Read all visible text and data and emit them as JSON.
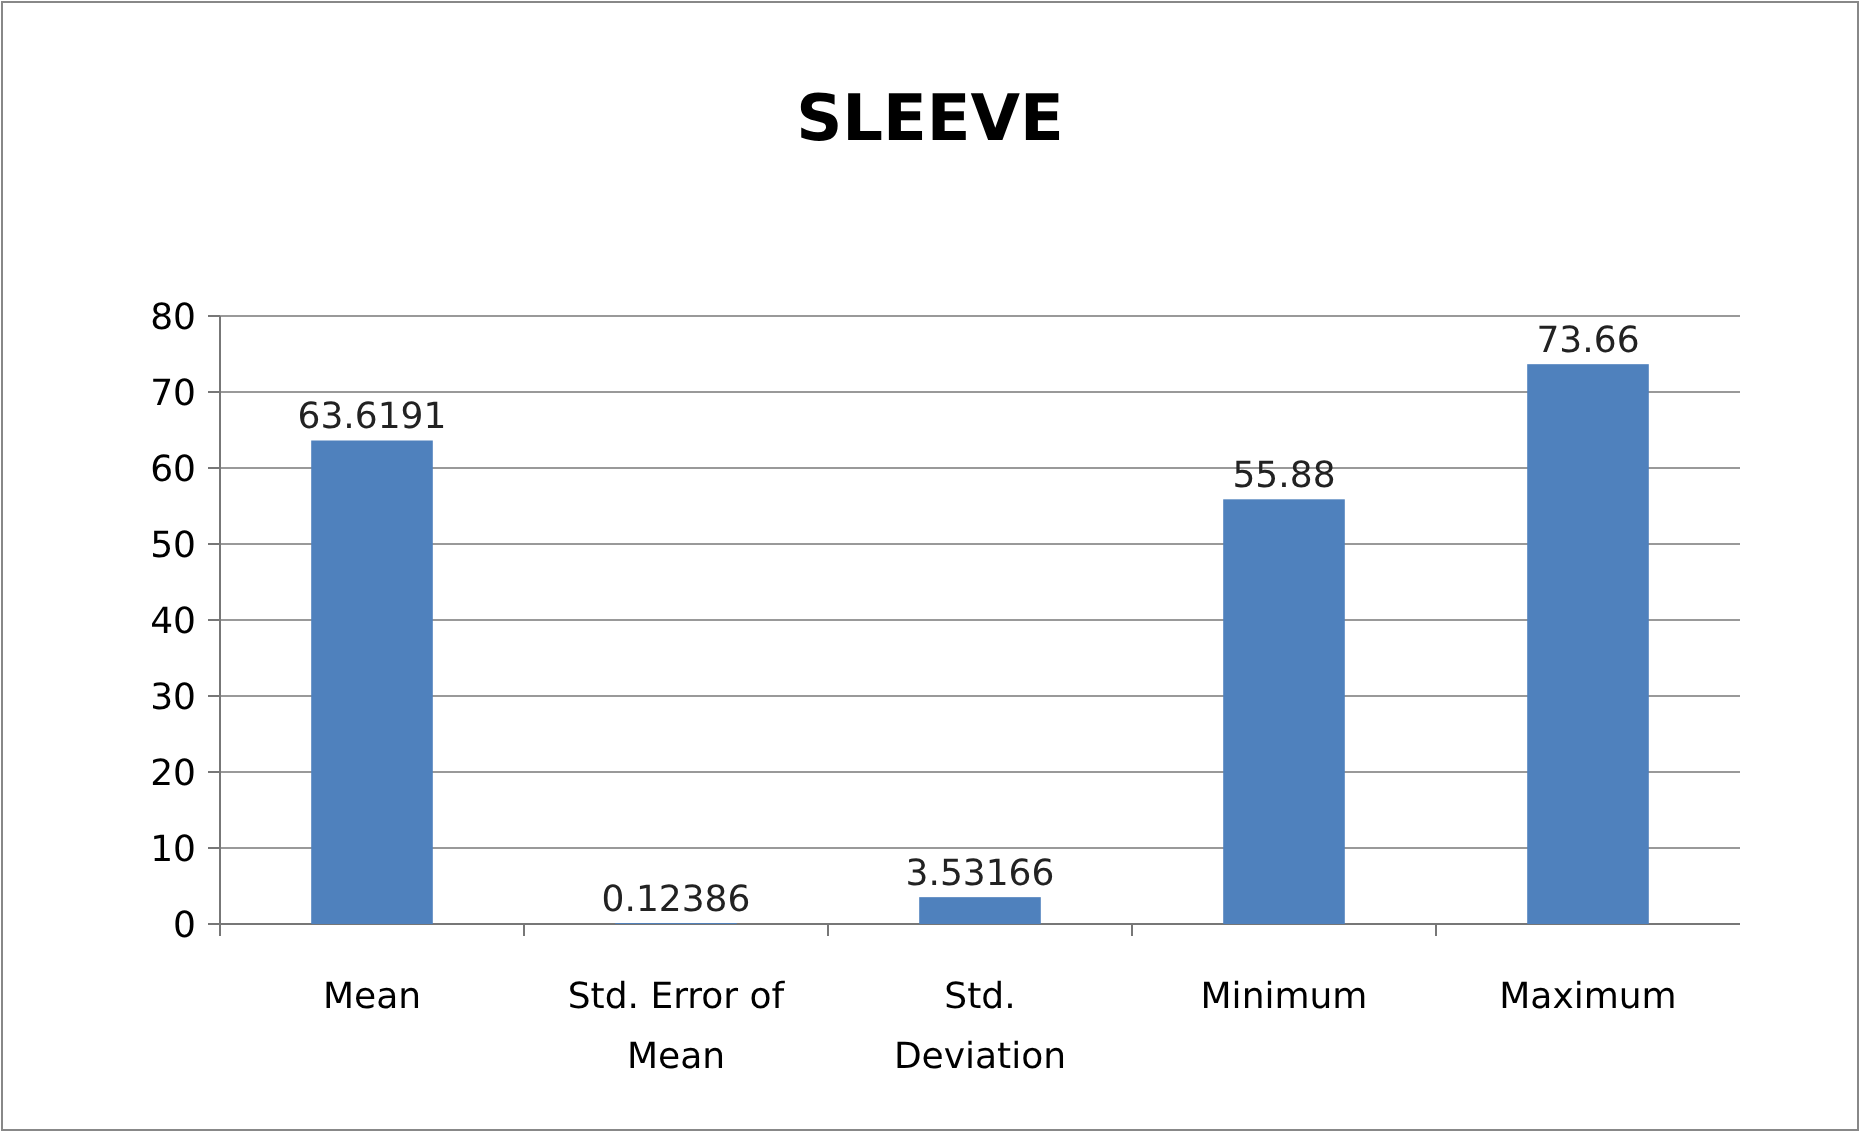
{
  "chart_data": {
    "type": "bar",
    "title": "SLEEVE",
    "categories": [
      "Mean",
      "Std. Error of Mean",
      "Std. Deviation",
      "Minimum",
      "Maximum"
    ],
    "values": [
      63.6191,
      0.12386,
      3.53166,
      55.88,
      73.66
    ],
    "color": "#4f81bd",
    "data_labels": true,
    "ylim": [
      0,
      80
    ],
    "yticks": [
      0,
      10,
      20,
      30,
      40,
      50,
      60,
      70,
      80
    ],
    "grid": "y"
  }
}
